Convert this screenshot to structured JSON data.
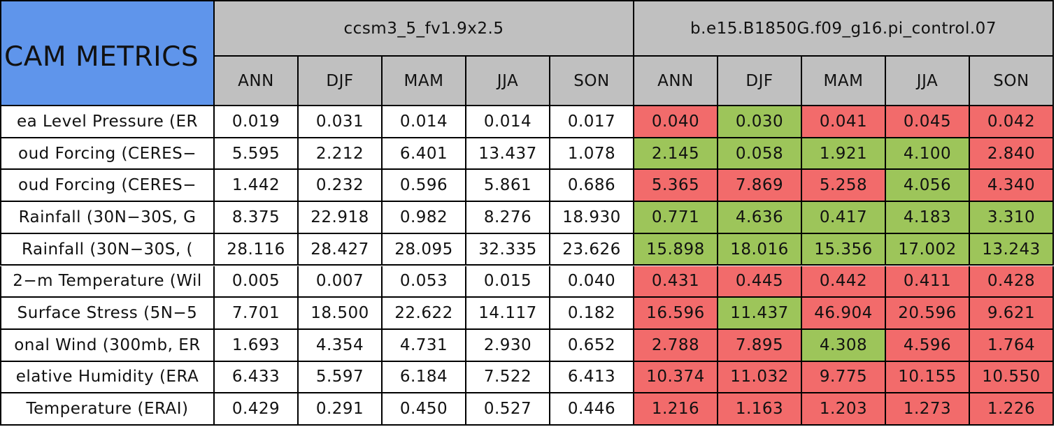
{
  "header": {
    "title": "CAM METRICS",
    "models": [
      "ccsm3_5_fv1.9x2.5",
      "b.e15.B1850G.f09_g16.pi_control.07"
    ],
    "seasons": [
      [
        "ANN",
        "DJF",
        "MAM",
        "JJA",
        "SON"
      ],
      [
        "ANN",
        "DJF",
        "MAM",
        "JJA",
        "SON"
      ]
    ]
  },
  "table": {
    "rows": [
      {
        "label": "ea Level Pressure (ER",
        "values": [
          "0.019",
          "0.031",
          "0.014",
          "0.014",
          "0.017",
          "0.040",
          "0.030",
          "0.041",
          "0.045",
          "0.042"
        ],
        "colors": [
          "#ffffff",
          "#ffffff",
          "#ffffff",
          "#ffffff",
          "#ffffff",
          "#f26b6b",
          "#9dc55a",
          "#f26b6b",
          "#f26b6b",
          "#f26b6b"
        ]
      },
      {
        "label": "oud Forcing (CERES−",
        "values": [
          "5.595",
          "2.212",
          "6.401",
          "13.437",
          "1.078",
          "2.145",
          "0.058",
          "1.921",
          "4.100",
          "2.840"
        ],
        "colors": [
          "#ffffff",
          "#ffffff",
          "#ffffff",
          "#ffffff",
          "#ffffff",
          "#9dc55a",
          "#9dc55a",
          "#9dc55a",
          "#9dc55a",
          "#f26b6b"
        ]
      },
      {
        "label": "oud Forcing (CERES−",
        "values": [
          "1.442",
          "0.232",
          "0.596",
          "5.861",
          "0.686",
          "5.365",
          "7.869",
          "5.258",
          "4.056",
          "4.340"
        ],
        "colors": [
          "#ffffff",
          "#ffffff",
          "#ffffff",
          "#ffffff",
          "#ffffff",
          "#f26b6b",
          "#f26b6b",
          "#f26b6b",
          "#9dc55a",
          "#f26b6b"
        ]
      },
      {
        "label": "Rainfall (30N−30S, G",
        "values": [
          "8.375",
          "22.918",
          "0.982",
          "8.276",
          "18.930",
          "0.771",
          "4.636",
          "0.417",
          "4.183",
          "3.310"
        ],
        "colors": [
          "#ffffff",
          "#ffffff",
          "#ffffff",
          "#ffffff",
          "#ffffff",
          "#9dc55a",
          "#9dc55a",
          "#9dc55a",
          "#9dc55a",
          "#9dc55a"
        ]
      },
      {
        "label": "Rainfall (30N−30S, (",
        "values": [
          "28.116",
          "28.427",
          "28.095",
          "32.335",
          "23.626",
          "15.898",
          "18.016",
          "15.356",
          "17.002",
          "13.243"
        ],
        "colors": [
          "#ffffff",
          "#ffffff",
          "#ffffff",
          "#ffffff",
          "#ffffff",
          "#9dc55a",
          "#9dc55a",
          "#9dc55a",
          "#9dc55a",
          "#9dc55a"
        ]
      },
      {
        "label": "2−m Temperature (Wil",
        "values": [
          "0.005",
          "0.007",
          "0.053",
          "0.015",
          "0.040",
          "0.431",
          "0.445",
          "0.442",
          "0.411",
          "0.428"
        ],
        "colors": [
          "#ffffff",
          "#ffffff",
          "#ffffff",
          "#ffffff",
          "#ffffff",
          "#f26b6b",
          "#f26b6b",
          "#f26b6b",
          "#f26b6b",
          "#f26b6b"
        ]
      },
      {
        "label": "Surface Stress (5N−5",
        "values": [
          "7.701",
          "18.500",
          "22.622",
          "14.117",
          "0.182",
          "16.596",
          "11.437",
          "46.904",
          "20.596",
          "9.621"
        ],
        "colors": [
          "#ffffff",
          "#ffffff",
          "#ffffff",
          "#ffffff",
          "#ffffff",
          "#f26b6b",
          "#9dc55a",
          "#f26b6b",
          "#f26b6b",
          "#f26b6b"
        ]
      },
      {
        "label": "onal Wind (300mb, ER",
        "values": [
          "1.693",
          "4.354",
          "4.731",
          "2.930",
          "0.652",
          "2.788",
          "7.895",
          "4.308",
          "4.596",
          "1.764"
        ],
        "colors": [
          "#ffffff",
          "#ffffff",
          "#ffffff",
          "#ffffff",
          "#ffffff",
          "#f26b6b",
          "#f26b6b",
          "#9dc55a",
          "#f26b6b",
          "#f26b6b"
        ]
      },
      {
        "label": "elative Humidity (ERA",
        "values": [
          "6.433",
          "5.597",
          "6.184",
          "7.522",
          "6.413",
          "10.374",
          "11.032",
          "9.775",
          "10.155",
          "10.550"
        ],
        "colors": [
          "#ffffff",
          "#ffffff",
          "#ffffff",
          "#ffffff",
          "#ffffff",
          "#f26b6b",
          "#f26b6b",
          "#f26b6b",
          "#f26b6b",
          "#f26b6b"
        ]
      },
      {
        "label": "Temperature (ERAI)",
        "values": [
          "0.429",
          "0.291",
          "0.450",
          "0.527",
          "0.446",
          "1.216",
          "1.163",
          "1.203",
          "1.273",
          "1.226"
        ],
        "colors": [
          "#ffffff",
          "#ffffff",
          "#ffffff",
          "#ffffff",
          "#ffffff",
          "#f26b6b",
          "#f26b6b",
          "#f26b6b",
          "#f26b6b",
          "#f26b6b"
        ]
      }
    ]
  }
}
